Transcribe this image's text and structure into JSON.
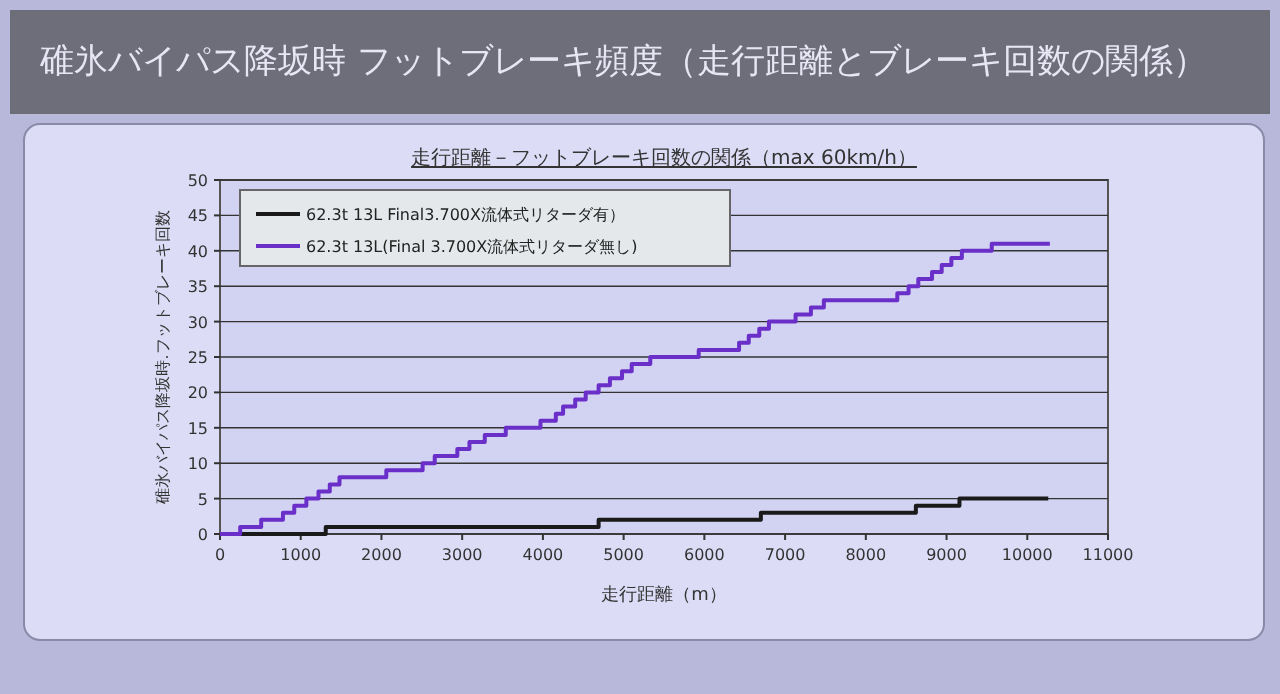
{
  "chart_data": {
    "type": "step",
    "title": "碓氷バイパス降坂時 フットブレーキ頻度（走行距離とブレーキ回数の関係）",
    "subtitle": "走行距離－フットブレーキ回数の関係（max 60km/h）",
    "xlabel": "走行距離（m）",
    "ylabel": "碓氷バイパス降坂時.フットブレーキ回数",
    "series": [
      {
        "name": "62.3t 13L Final3.700X流体式リターダ有）",
        "color": "#1a1a1a",
        "x": [
          0,
          1310,
          4690,
          6700,
          8620,
          9160,
          10260
        ],
        "values": [
          0,
          1,
          2,
          3,
          4,
          5,
          5
        ]
      },
      {
        "name": "62.3t 13L(Final 3.700X流体式リターダ無し)",
        "color": "#6a2fc8",
        "x": [
          0,
          250,
          510,
          780,
          920,
          1070,
          1220,
          1360,
          1480,
          2060,
          2510,
          2660,
          2940,
          3090,
          3280,
          3540,
          3970,
          4160,
          4250,
          4400,
          4530,
          4690,
          4830,
          4980,
          5100,
          5330,
          5930,
          6430,
          6550,
          6680,
          6800,
          7130,
          7320,
          7480,
          8390,
          8530,
          8650,
          8820,
          8940,
          9060,
          9190,
          9560,
          10280
        ],
        "values": [
          0,
          1,
          2,
          3,
          4,
          5,
          6,
          7,
          8,
          9,
          10,
          11,
          12,
          13,
          14,
          15,
          16,
          17,
          18,
          19,
          20,
          21,
          22,
          23,
          24,
          25,
          26,
          27,
          28,
          29,
          30,
          31,
          32,
          33,
          34,
          35,
          36,
          37,
          38,
          39,
          40,
          41,
          41
        ]
      }
    ],
    "xlim": [
      0,
      11000
    ],
    "xticks": [
      0,
      1000,
      2000,
      3000,
      4000,
      5000,
      6000,
      7000,
      8000,
      9000,
      10000,
      11000
    ],
    "ylim": [
      0,
      50
    ],
    "yticks": [
      0,
      5,
      10,
      15,
      20,
      25,
      30,
      35,
      40,
      45,
      50
    ],
    "grid": "y",
    "legend": "top left",
    "marker": "none",
    "line_style": "solid"
  }
}
